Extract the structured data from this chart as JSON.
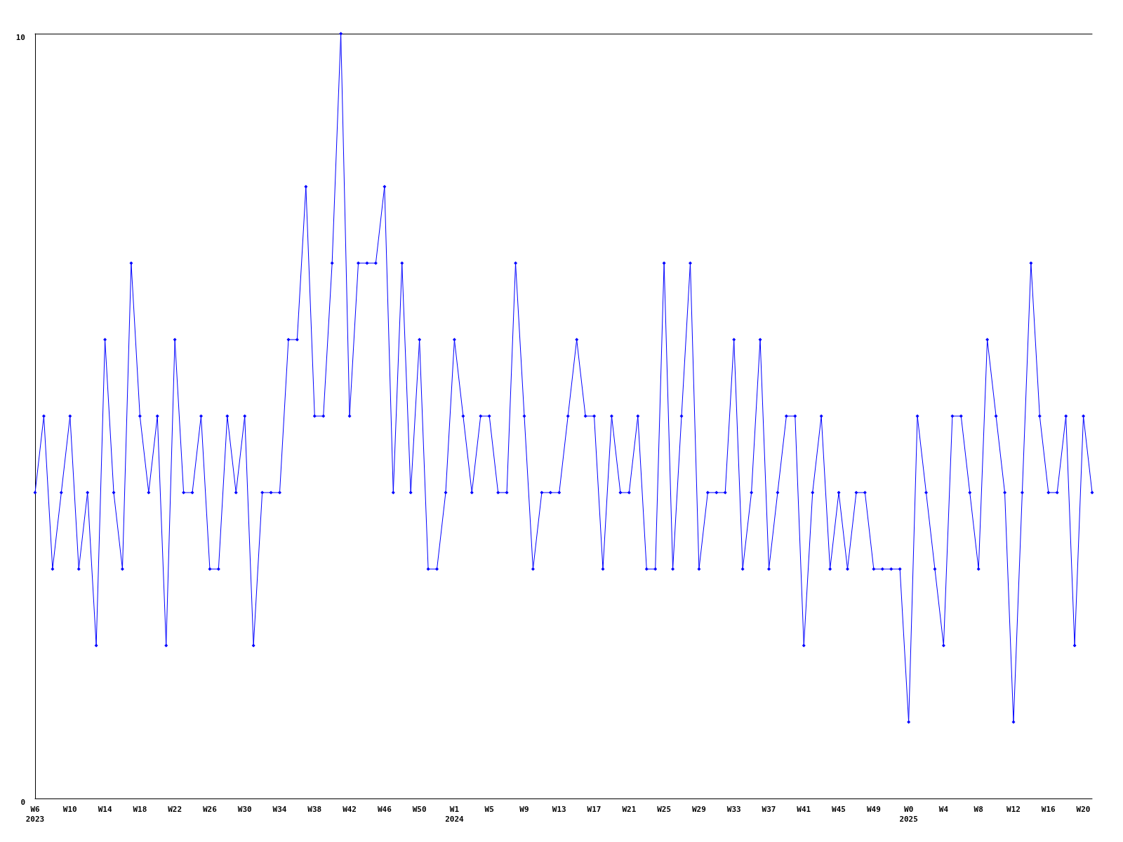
{
  "chart_data": {
    "type": "line",
    "categories": [
      "W6\n2023",
      null,
      null,
      null,
      "W10",
      null,
      null,
      null,
      "W14",
      null,
      null,
      null,
      "W18",
      null,
      null,
      null,
      "W22",
      null,
      null,
      null,
      "W26",
      null,
      null,
      null,
      "W30",
      null,
      null,
      null,
      "W34",
      null,
      null,
      null,
      "W38",
      null,
      null,
      null,
      "W42",
      null,
      null,
      null,
      "W46",
      null,
      null,
      null,
      "W50",
      null,
      null,
      null,
      "W1\n2024",
      null,
      null,
      null,
      "W5",
      null,
      null,
      null,
      "W9",
      null,
      null,
      null,
      "W13",
      null,
      null,
      null,
      "W17",
      null,
      null,
      null,
      "W21",
      null,
      null,
      null,
      "W25",
      null,
      null,
      null,
      "W29",
      null,
      null,
      null,
      "W33",
      null,
      null,
      null,
      "W37",
      null,
      null,
      null,
      "W41",
      null,
      null,
      null,
      "W45",
      null,
      null,
      null,
      "W49",
      null,
      null,
      null,
      "W0\n2025",
      null,
      null,
      null,
      "W4",
      null,
      null,
      null,
      "W8",
      null,
      null,
      null,
      "W12",
      null,
      null,
      null,
      "W16",
      null,
      null,
      null,
      "W20",
      null
    ],
    "series": [
      {
        "color": "#0000ff",
        "values": [
          4,
          5,
          3,
          4,
          5,
          3,
          4,
          2,
          6,
          4,
          3,
          7,
          5,
          4,
          5,
          2,
          6,
          4,
          4,
          5,
          3,
          3,
          5,
          4,
          5,
          2,
          4,
          4,
          4,
          6,
          6,
          8,
          5,
          5,
          7,
          10,
          5,
          7,
          7,
          7,
          8,
          4,
          7,
          4,
          6,
          3,
          3,
          4,
          6,
          5,
          4,
          5,
          5,
          4,
          4,
          7,
          5,
          3,
          4,
          4,
          4,
          5,
          6,
          5,
          5,
          3,
          5,
          4,
          4,
          5,
          3,
          3,
          7,
          3,
          5,
          7,
          3,
          4,
          4,
          4,
          6,
          3,
          4,
          6,
          3,
          4,
          5,
          5,
          2,
          4,
          5,
          3,
          4,
          3,
          4,
          4,
          3,
          3,
          3,
          3,
          1,
          5,
          4,
          3,
          2,
          5,
          5,
          4,
          3,
          6,
          5,
          4,
          1,
          4,
          7,
          5,
          4,
          4,
          5,
          2,
          5,
          4
        ]
      }
    ],
    "ylim": [
      0,
      10
    ],
    "yticks": [
      0,
      10
    ],
    "grid": false,
    "marker": "diamond",
    "line_style": "solid"
  }
}
